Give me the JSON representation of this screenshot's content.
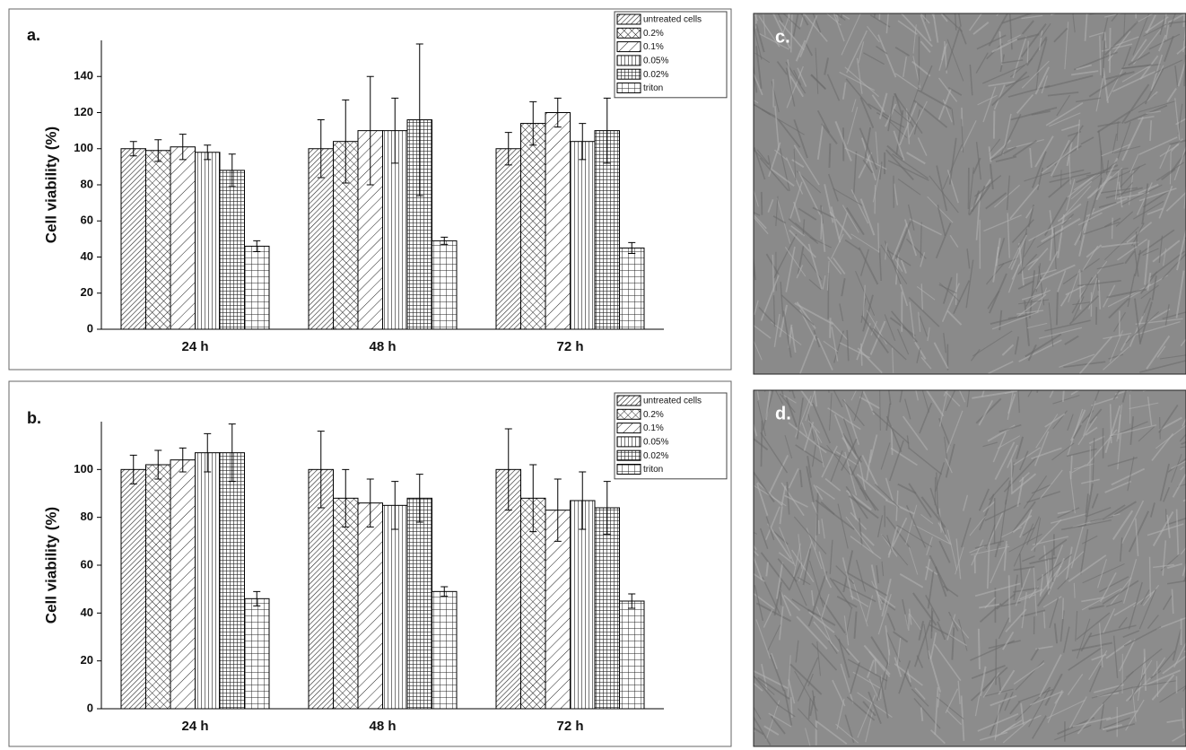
{
  "chart_data": [
    {
      "type": "bar",
      "label": "a.",
      "y_label": "Cell viability (%)",
      "categories": [
        "24 h",
        "48 h",
        "72 h"
      ],
      "ylim": [
        0,
        160
      ],
      "yticks": [
        0,
        20,
        40,
        60,
        80,
        100,
        120,
        140
      ],
      "series": [
        {
          "name": "untreated cells",
          "values": [
            100,
            100,
            100
          ],
          "errors": [
            4,
            16,
            9
          ]
        },
        {
          "name": "0.2%",
          "values": [
            99,
            104,
            114
          ],
          "errors": [
            6,
            23,
            12
          ]
        },
        {
          "name": "0.1%",
          "values": [
            101,
            110,
            120
          ],
          "errors": [
            7,
            30,
            8
          ]
        },
        {
          "name": "0.05%",
          "values": [
            98,
            110,
            104
          ],
          "errors": [
            4,
            18,
            10
          ]
        },
        {
          "name": "0.02%",
          "values": [
            88,
            116,
            110
          ],
          "errors": [
            9,
            42,
            18
          ]
        },
        {
          "name": "triton",
          "values": [
            46,
            49,
            45
          ],
          "errors": [
            3,
            2,
            3
          ]
        }
      ]
    },
    {
      "type": "bar",
      "label": "b.",
      "y_label": "Cell viability (%)",
      "categories": [
        "24 h",
        "48 h",
        "72 h"
      ],
      "ylim": [
        0,
        120
      ],
      "yticks": [
        0,
        20,
        40,
        60,
        80,
        100
      ],
      "series": [
        {
          "name": "untreated cells",
          "values": [
            100,
            100,
            100
          ],
          "errors": [
            6,
            16,
            17
          ]
        },
        {
          "name": "0.2%",
          "values": [
            102,
            88,
            88
          ],
          "errors": [
            6,
            12,
            14
          ]
        },
        {
          "name": "0.1%",
          "values": [
            104,
            86,
            83
          ],
          "errors": [
            5,
            10,
            13
          ]
        },
        {
          "name": "0.05%",
          "values": [
            107,
            85,
            87
          ],
          "errors": [
            8,
            10,
            12
          ]
        },
        {
          "name": "0.02%",
          "values": [
            107,
            88,
            84
          ],
          "errors": [
            12,
            10,
            11
          ]
        },
        {
          "name": "triton",
          "values": [
            46,
            49,
            45
          ],
          "errors": [
            3,
            2,
            3
          ]
        }
      ]
    }
  ],
  "images": [
    {
      "label": "c."
    },
    {
      "label": "d."
    }
  ]
}
